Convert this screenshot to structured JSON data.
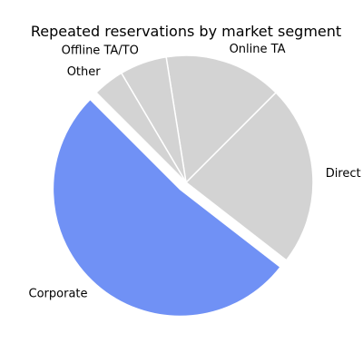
{
  "chart_data": {
    "type": "pie",
    "title": "Repeated reservations by market segment",
    "categories": [
      "Corporate",
      "Direct",
      "Online TA",
      "Offline TA/TO",
      "Other"
    ],
    "values": [
      52,
      23,
      15,
      6,
      4
    ],
    "colors": [
      "#7091f5",
      "#d3d3d3",
      "#d3d3d3",
      "#d3d3d3",
      "#d3d3d3"
    ],
    "exploded": [
      "Corporate"
    ],
    "legend": "none"
  }
}
